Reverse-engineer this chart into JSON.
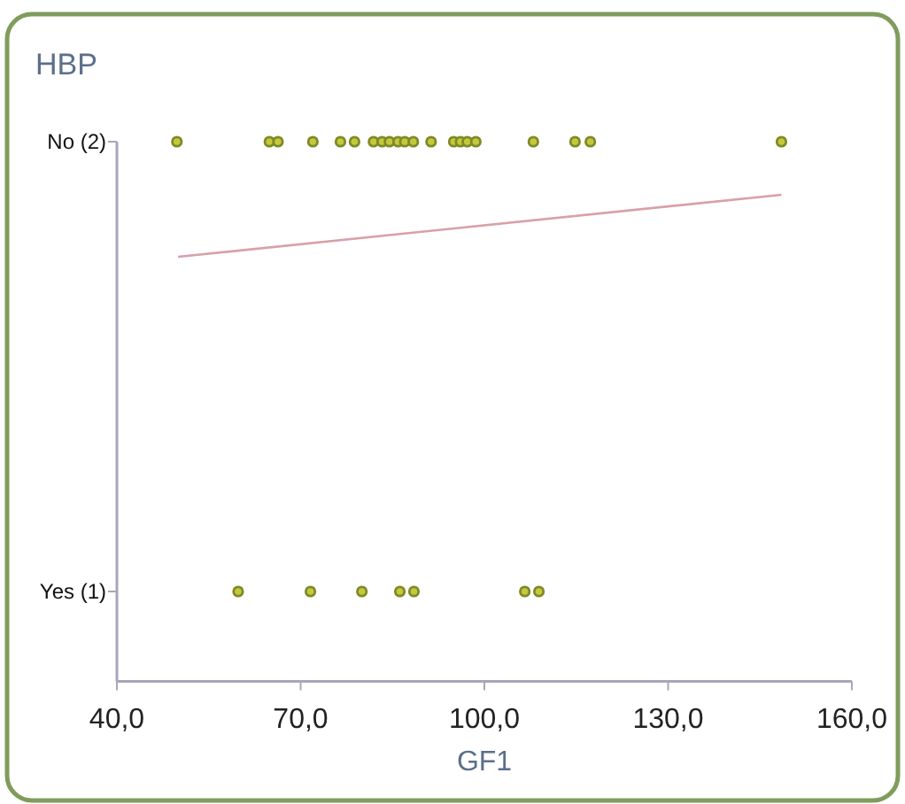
{
  "chart_data": {
    "type": "scatter",
    "title": "HBP",
    "xlabel": "GF1",
    "xlim": [
      40,
      160
    ],
    "xticks": [
      {
        "value": 40,
        "label": "40,0"
      },
      {
        "value": 70,
        "label": "70,0"
      },
      {
        "value": 100,
        "label": "100,0"
      },
      {
        "value": 130,
        "label": "130,0"
      },
      {
        "value": 160,
        "label": "160,0"
      }
    ],
    "ylim": [
      0.8,
      2
    ],
    "yticks": [
      {
        "value": 1,
        "label": "Yes (1)"
      },
      {
        "value": 2,
        "label": "No (2)"
      }
    ],
    "grid": false,
    "series": [
      {
        "marker": "circle",
        "color": "#c4c83c",
        "x": [
          49.8,
          64.9,
          66.3,
          72,
          76.5,
          78.8,
          81.9,
          83.3,
          84.5,
          85.9,
          87,
          88.4,
          91.3,
          95,
          96.1,
          97.2,
          98.6,
          108,
          114.8,
          117.3,
          148.5,
          59.8,
          71.6,
          80,
          86.2,
          88.5,
          106.6,
          108.9
        ],
        "values": [
          2,
          2,
          2,
          2,
          2,
          2,
          2,
          2,
          2,
          2,
          2,
          2,
          2,
          2,
          2,
          2,
          2,
          2,
          2,
          2,
          2,
          1,
          1,
          1,
          1,
          1,
          1,
          1
        ]
      },
      {
        "type": "line",
        "color": "#d9a0aa",
        "line_style": "solid",
        "x": [
          50,
          148.5
        ],
        "values": [
          1.744,
          1.882
        ]
      }
    ]
  }
}
